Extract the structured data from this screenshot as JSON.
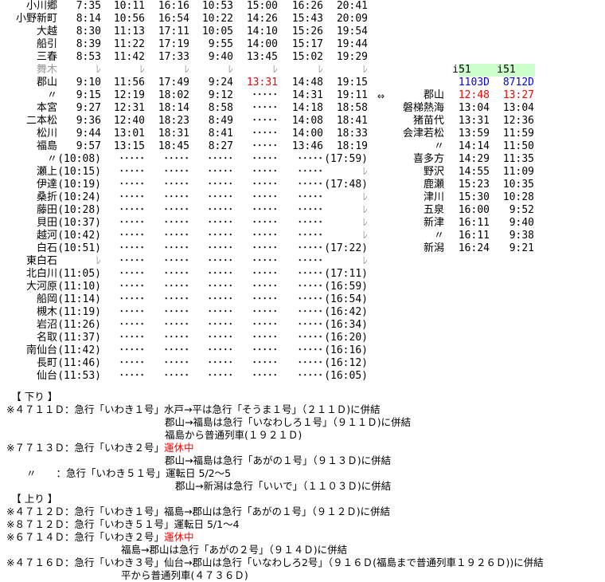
{
  "main_table": {
    "stations": [
      {
        "name": "小川郷",
        "times": [
          "7:35",
          "10:11",
          "16:16",
          "10:53",
          "15:00",
          "16:26",
          "20:41"
        ]
      },
      {
        "name": "小野新町",
        "times": [
          "8:14",
          "10:56",
          "16:54",
          "10:22",
          "14:26",
          "15:43",
          "20:09"
        ]
      },
      {
        "name": "大越",
        "times": [
          "8:30",
          "11:13",
          "17:11",
          "10:05",
          "14:10",
          "15:26",
          "19:54"
        ]
      },
      {
        "name": "船引",
        "times": [
          "8:39",
          "11:22",
          "17:19",
          "9:55",
          "14:00",
          "15:17",
          "19:44"
        ]
      },
      {
        "name": "三春",
        "times": [
          "8:53",
          "11:42",
          "17:33",
          "9:40",
          "13:45",
          "15:02",
          "19:29"
        ]
      },
      {
        "name": "舞木",
        "gray": true,
        "times": [
          "ﾚ",
          "ﾚ",
          "ﾚ",
          "ﾚ",
          "ﾚ",
          "ﾚ",
          "ﾚ"
        ]
      },
      {
        "name": "郡山",
        "times": [
          "9:10",
          "11:56",
          "17:49",
          "9:24",
          "13:31",
          "14:48",
          "19:15"
        ],
        "red_col": 4
      },
      {
        "name": "〃",
        "times": [
          "9:15",
          "12:19",
          "18:02",
          "9:12",
          "･････",
          "14:31",
          "19:11"
        ]
      },
      {
        "name": "本宮",
        "times": [
          "9:27",
          "12:31",
          "18:14",
          "8:58",
          "･････",
          "14:18",
          "18:58"
        ]
      },
      {
        "name": "二本松",
        "times": [
          "9:36",
          "12:40",
          "18:23",
          "8:49",
          "･････",
          "14:08",
          "18:41"
        ]
      },
      {
        "name": "松川",
        "times": [
          "9:44",
          "13:01",
          "18:31",
          "8:41",
          "･････",
          "14:00",
          "18:33"
        ]
      },
      {
        "name": "福島",
        "times": [
          "9:57",
          "13:15",
          "18:45",
          "8:27",
          "･････",
          "13:46",
          "18:19"
        ]
      },
      {
        "name": "〃",
        "times": [
          "(10:08)",
          "･････",
          "･････",
          "･････",
          "･････",
          "･････",
          "(17:59)"
        ]
      },
      {
        "name": "瀬上",
        "times": [
          "(10:15)",
          "･････",
          "･････",
          "･････",
          "･････",
          "･････",
          "ﾚ"
        ]
      },
      {
        "name": "伊達",
        "times": [
          "(10:19)",
          "･････",
          "･････",
          "･････",
          "･････",
          "･････",
          "(17:48)"
        ]
      },
      {
        "name": "桑折",
        "times": [
          "(10:24)",
          "･････",
          "･････",
          "･････",
          "･････",
          "･････",
          "ﾚ"
        ]
      },
      {
        "name": "藤田",
        "times": [
          "(10:28)",
          "･････",
          "･････",
          "･････",
          "･････",
          "･････",
          "ﾚ"
        ]
      },
      {
        "name": "貝田",
        "times": [
          "(10:37)",
          "･････",
          "･････",
          "･････",
          "･････",
          "･････",
          "ﾚ"
        ]
      },
      {
        "name": "越河",
        "times": [
          "(10:42)",
          "･････",
          "･････",
          "･････",
          "･････",
          "･････",
          "ﾚ"
        ]
      },
      {
        "name": "白石",
        "times": [
          "(10:51)",
          "･････",
          "･････",
          "･････",
          "･････",
          "･････",
          "(17:22)"
        ]
      },
      {
        "name": "東白石",
        "times": [
          "ﾚ",
          "･････",
          "･････",
          "･････",
          "･････",
          "･････",
          "ﾚ"
        ]
      },
      {
        "name": "北白川",
        "times": [
          "(11:05)",
          "･････",
          "･････",
          "･････",
          "･････",
          "･････",
          "(17:11)"
        ]
      },
      {
        "name": "大河原",
        "times": [
          "(11:10)",
          "･････",
          "･････",
          "･････",
          "･････",
          "･････",
          "(16:59)"
        ]
      },
      {
        "name": "船岡",
        "times": [
          "(11:14)",
          "･････",
          "･････",
          "･････",
          "･････",
          "･････",
          "(16:54)"
        ]
      },
      {
        "name": "槻木",
        "times": [
          "(11:19)",
          "･････",
          "･････",
          "･････",
          "･････",
          "･････",
          "(16:42)"
        ]
      },
      {
        "name": "岩沼",
        "times": [
          "(11:26)",
          "･････",
          "･････",
          "･････",
          "･････",
          "･････",
          "(16:34)"
        ]
      },
      {
        "name": "名取",
        "times": [
          "(11:37)",
          "･････",
          "･････",
          "･････",
          "･････",
          "･････",
          "(16:20)"
        ]
      },
      {
        "name": "南仙台",
        "times": [
          "(11:42)",
          "･････",
          "･････",
          "･････",
          "･････",
          "･････",
          "(16:16)"
        ]
      },
      {
        "name": "長町",
        "times": [
          "(11:46)",
          "･････",
          "･････",
          "･････",
          "･････",
          "･････",
          "(16:12)"
        ]
      },
      {
        "name": "仙台",
        "times": [
          "(11:53)",
          "･････",
          "･････",
          "･････",
          "･････",
          "･････",
          "(16:05)"
        ]
      }
    ]
  },
  "side_table": {
    "arrow": "⇔",
    "headers": [
      "i51",
      "i51"
    ],
    "trains": [
      "1103D",
      "8712D"
    ],
    "stations": [
      {
        "name": "郡山",
        "times": [
          "12:48",
          "13:27"
        ],
        "red": true
      },
      {
        "name": "磐梯熱海",
        "times": [
          "13:04",
          "13:04"
        ]
      },
      {
        "name": "猪苗代",
        "times": [
          "13:31",
          "12:36"
        ]
      },
      {
        "name": "会津若松",
        "times": [
          "13:59",
          "11:59"
        ]
      },
      {
        "name": "〃",
        "times": [
          "14:14",
          "11:50"
        ]
      },
      {
        "name": "喜多方",
        "times": [
          "14:29",
          "11:35"
        ]
      },
      {
        "name": "野沢",
        "times": [
          "14:55",
          "11:09"
        ]
      },
      {
        "name": "鹿瀬",
        "times": [
          "15:23",
          "10:35"
        ]
      },
      {
        "name": "津川",
        "times": [
          "15:30",
          "10:28"
        ]
      },
      {
        "name": "五泉",
        "times": [
          "16:00",
          "9:52"
        ]
      },
      {
        "name": "新津",
        "times": [
          "16:11",
          "9:40"
        ]
      },
      {
        "name": "〃",
        "times": [
          "16:11",
          "9:38"
        ]
      },
      {
        "name": "新潟",
        "times": [
          "16:24",
          "9:21"
        ]
      }
    ]
  },
  "notes": [
    {
      "lead": "　【 下り 】",
      "text": ""
    },
    {
      "lead": "※４７１１Ｄ：急行「いわき１号」",
      "text": "水戸→平は急行「そうま１号」（２１１Ｄ)に併結"
    },
    {
      "lead": "",
      "text": "郡山→福島は急行「いなわしろ１号」（９１１Ｄ)に併結"
    },
    {
      "lead": "",
      "text": "福島から普通列車(１９２１Ｄ)"
    },
    {
      "lead": "※７７１３Ｄ：急行「いわき２号」",
      "text": "",
      "red": "運休中"
    },
    {
      "lead": "",
      "text": "郡山→福島は急行「あがの１号」（９１３Ｄ)に併結"
    },
    {
      "lead": "　　〃　　：急行「いわき５１号」",
      "text": "運転日 5/2～5"
    },
    {
      "lead": "",
      "text": "郡山→新潟は急行「いいで」（１１０３Ｄ)に併結"
    },
    {
      "lead": "　【 上り 】",
      "text": ""
    },
    {
      "lead": "※４７１２Ｄ：急行「いわき１号」",
      "text": "福島→郡山は急行「あがの１号」（９１２Ｄ)に併結"
    },
    {
      "lead": "※８７１２Ｄ：急行「いわき５１号」",
      "text": "運転日 5/1～4"
    },
    {
      "lead": "※６７１４Ｄ：急行「いわき２号」",
      "text": "",
      "red": "運休中"
    },
    {
      "lead": "",
      "text": "福島→郡山は急行「あがの２号」（９１４Ｄ)に併結"
    },
    {
      "lead": "※４７１６Ｄ：急行「いわき３号」",
      "text": "仙台→郡山は急行「いなわしろ2号」（９１６Ｄ(福島まで普通列車１９２６Ｄ))に併結"
    },
    {
      "lead": "",
      "text": "平から普通列車(４７３６Ｄ)"
    }
  ],
  "colors": {
    "red": "#ff0000",
    "blue": "#0000ff",
    "gray": "#999999",
    "header_bg": "#ccffcc"
  }
}
